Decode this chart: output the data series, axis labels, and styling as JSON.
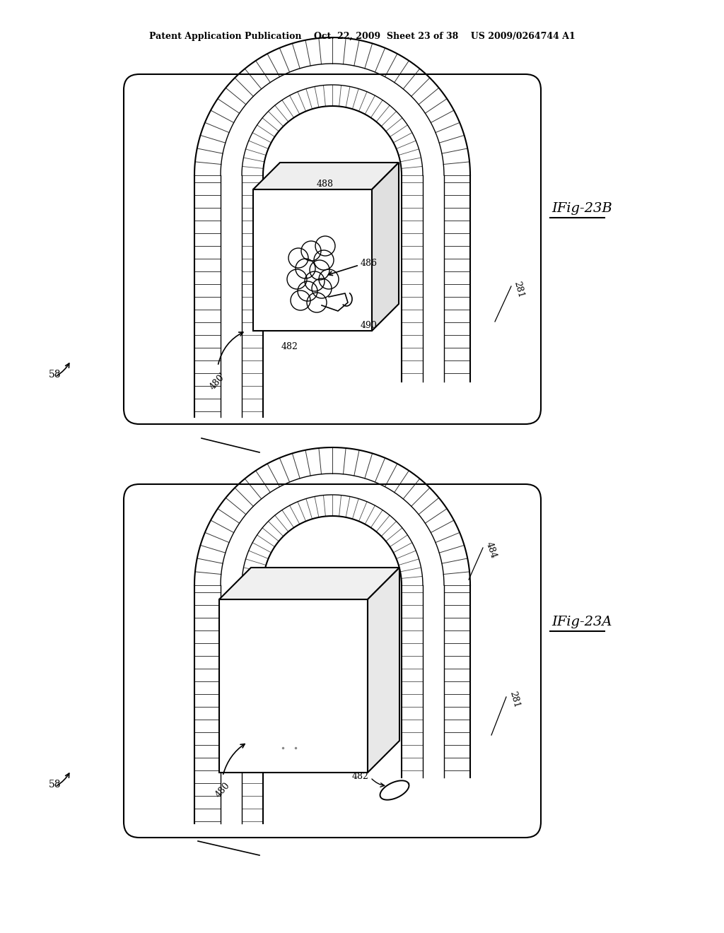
{
  "bg_color": "#ffffff",
  "title_text": "Patent Application Publication    Oct. 22, 2009  Sheet 23 of 38    US 2009/0264744 A1",
  "line_color": "#000000",
  "gray_light": "#d0d0d0",
  "gray_mid": "#b0b0b0"
}
